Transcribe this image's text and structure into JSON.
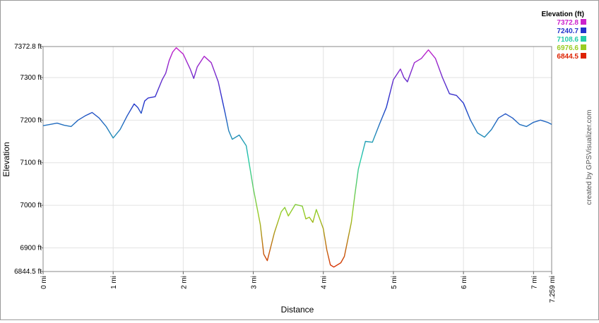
{
  "chart_data": {
    "type": "line",
    "title": "",
    "xlabel": "Distance",
    "ylabel": "Elevation",
    "xlim": [
      0,
      7.259
    ],
    "ylim": [
      6844.5,
      7372.8
    ],
    "x_ticks": [
      "0 mi",
      "1 mi",
      "2 mi",
      "3 mi",
      "4 mi",
      "5 mi",
      "6 mi",
      "7 mi",
      "7.259 mi"
    ],
    "y_ticks": [
      "7372.8 ft",
      "7300 ft",
      "7200 ft",
      "7100 ft",
      "7000 ft",
      "6900 ft",
      "6844.5 ft"
    ],
    "y_tick_values": [
      7372.8,
      7300,
      7200,
      7100,
      7000,
      6900,
      6844.5
    ],
    "x_tick_values": [
      0,
      1,
      2,
      3,
      4,
      5,
      6,
      7,
      7.259
    ],
    "grid": true,
    "legend": {
      "title": "Elevation (ft)",
      "placement": "top-right",
      "entries": [
        {
          "label": "7372.8",
          "color": "#cc22cc"
        },
        {
          "label": "7240.7",
          "color": "#2233cc"
        },
        {
          "label": "7108.6",
          "color": "#22ccaa"
        },
        {
          "label": "6976.6",
          "color": "#99cc22"
        },
        {
          "label": "6844.5",
          "color": "#dd2200"
        }
      ]
    },
    "credit": "created by GPSVisualizer.com",
    "series": [
      {
        "x": [
          0,
          0.1,
          0.2,
          0.3,
          0.4,
          0.5,
          0.6,
          0.7,
          0.8,
          0.9,
          1.0,
          1.1,
          1.2,
          1.3,
          1.35,
          1.4,
          1.45,
          1.5,
          1.6,
          1.7,
          1.75,
          1.8,
          1.85,
          1.9,
          2.0,
          2.1,
          2.15,
          2.2,
          2.3,
          2.4,
          2.5,
          2.6,
          2.65,
          2.7,
          2.8,
          2.9,
          2.95,
          3.0,
          3.1,
          3.15,
          3.2,
          3.3,
          3.4,
          3.45,
          3.5,
          3.6,
          3.7,
          3.75,
          3.8,
          3.85,
          3.9,
          4.0,
          4.05,
          4.1,
          4.15,
          4.25,
          4.3,
          4.4,
          4.45,
          4.5,
          4.6,
          4.7,
          4.8,
          4.9,
          5.0,
          5.1,
          5.15,
          5.2,
          5.3,
          5.4,
          5.5,
          5.6,
          5.7,
          5.8,
          5.9,
          6.0,
          6.1,
          6.2,
          6.3,
          6.4,
          6.5,
          6.6,
          6.7,
          6.8,
          6.9,
          7.0,
          7.1,
          7.2,
          7.259
        ],
        "y": [
          7187,
          7190,
          7193,
          7188,
          7185,
          7200,
          7210,
          7218,
          7205,
          7185,
          7158,
          7178,
          7210,
          7238,
          7230,
          7216,
          7245,
          7252,
          7255,
          7295,
          7310,
          7340,
          7360,
          7370,
          7355,
          7320,
          7298,
          7325,
          7350,
          7335,
          7290,
          7215,
          7175,
          7155,
          7165,
          7140,
          7090,
          7040,
          6955,
          6885,
          6870,
          6935,
          6985,
          6995,
          6975,
          7002,
          6998,
          6968,
          6972,
          6960,
          6990,
          6945,
          6895,
          6860,
          6855,
          6865,
          6880,
          6960,
          7025,
          7085,
          7150,
          7148,
          7190,
          7230,
          7295,
          7320,
          7300,
          7290,
          7335,
          7345,
          7365,
          7345,
          7300,
          7262,
          7258,
          7240,
          7200,
          7170,
          7160,
          7178,
          7205,
          7215,
          7205,
          7190,
          7185,
          7195,
          7200,
          7195,
          7190
        ]
      }
    ]
  }
}
